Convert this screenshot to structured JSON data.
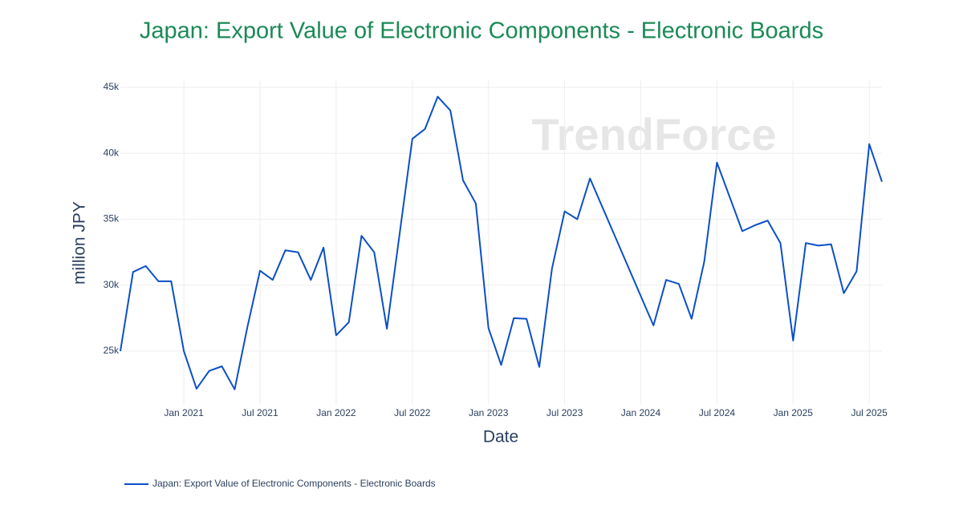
{
  "chart_data": {
    "type": "line",
    "title": "Japan: Export Value of Electronic Components - Electronic Boards",
    "xlabel": "Date",
    "ylabel": "million JPY",
    "watermark": "TrendForce",
    "grid": true,
    "legend": "bottom-left",
    "x": [
      "2020-08",
      "2020-09",
      "2020-10",
      "2020-11",
      "2020-12",
      "2021-01",
      "2021-02",
      "2021-03",
      "2021-04",
      "2021-05",
      "2021-06",
      "2021-07",
      "2021-08",
      "2021-09",
      "2021-10",
      "2021-11",
      "2021-12",
      "2022-01",
      "2022-02",
      "2022-03",
      "2022-04",
      "2022-05",
      "2022-06",
      "2022-07",
      "2022-08",
      "2022-09",
      "2022-10",
      "2022-11",
      "2022-12",
      "2023-01",
      "2023-02",
      "2023-03",
      "2023-04",
      "2023-05",
      "2023-06",
      "2023-07",
      "2023-08",
      "2023-09",
      "2024-02",
      "2024-03",
      "2024-04",
      "2024-05",
      "2024-06",
      "2024-07",
      "2024-08",
      "2024-09",
      "2024-10",
      "2024-11",
      "2024-12",
      "2025-01",
      "2025-02",
      "2025-03",
      "2025-04",
      "2025-05",
      "2025-06",
      "2025-07",
      "2025-08"
    ],
    "series": [
      {
        "name": "Japan: Export Value of Electronic Components - Electronic Boards",
        "color": "#0b4fc7",
        "values": [
          25000,
          31000,
          31450,
          30300,
          30300,
          25000,
          22150,
          23500,
          23850,
          22100,
          26800,
          31100,
          30400,
          32650,
          32500,
          30400,
          32850,
          26200,
          27200,
          33750,
          32500,
          26700,
          33900,
          41100,
          41850,
          44300,
          43250,
          37950,
          36200,
          26750,
          23950,
          27500,
          27450,
          23800,
          31250,
          35600,
          35000,
          38100,
          26950,
          30400,
          30100,
          27450,
          31800,
          39300,
          36700,
          34100,
          34550,
          34900,
          33200,
          25800,
          33200,
          33000,
          33100,
          29400,
          31050,
          40700,
          37850
        ]
      }
    ],
    "xlim": [
      "2020-08",
      "2025-08"
    ],
    "xticks": [
      {
        "value": "2021-01",
        "label": "Jan 2021"
      },
      {
        "value": "2021-07",
        "label": "Jul 2021"
      },
      {
        "value": "2022-01",
        "label": "Jan 2022"
      },
      {
        "value": "2022-07",
        "label": "Jul 2022"
      },
      {
        "value": "2023-01",
        "label": "Jan 2023"
      },
      {
        "value": "2023-07",
        "label": "Jul 2023"
      },
      {
        "value": "2024-01",
        "label": "Jan 2024"
      },
      {
        "value": "2024-07",
        "label": "Jul 2024"
      },
      {
        "value": "2025-01",
        "label": "Jan 2025"
      },
      {
        "value": "2025-07",
        "label": "Jul 2025"
      }
    ],
    "ylim": [
      20930,
      45550
    ],
    "yticks": [
      {
        "value": 25000,
        "label": "25k"
      },
      {
        "value": 30000,
        "label": "30k"
      },
      {
        "value": 35000,
        "label": "35k"
      },
      {
        "value": 40000,
        "label": "40k"
      },
      {
        "value": 45000,
        "label": "45k"
      }
    ]
  }
}
